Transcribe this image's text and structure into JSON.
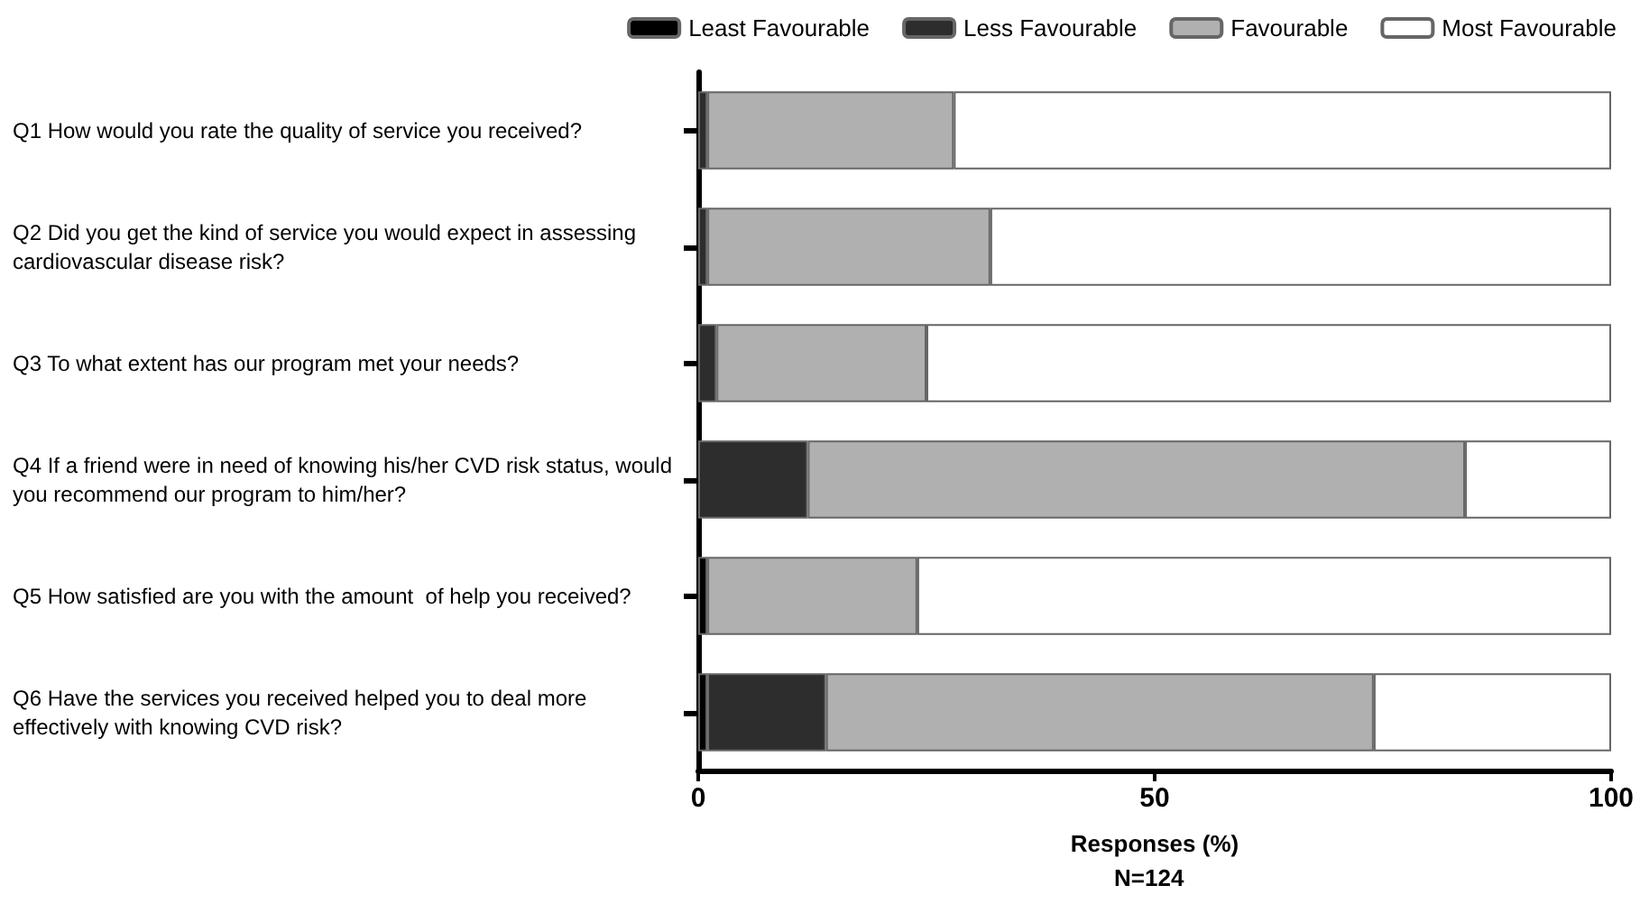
{
  "chart_data": {
    "type": "bar",
    "orientation": "horizontal",
    "stacked": true,
    "categories": [
      "Q1 How would you rate the quality of service you received?",
      "Q2 Did you get the kind of service you would expect in assessing cardiovascular disease risk?",
      "Q3 To what extent has our program met your needs?",
      "Q4 If a friend were in need of knowing his/her CVD risk status, would you recommend our program to him/her?",
      "Q5 How satisfied are you with the amount  of help you received?",
      "Q6 Have the services you received helped you to deal more effectively with knowing CVD risk?"
    ],
    "series": [
      {
        "name": "Least Favourable",
        "color": "#000000",
        "values": [
          0,
          0,
          0,
          0,
          1,
          1
        ]
      },
      {
        "name": "Less Favourable",
        "color": "#2d2d2d",
        "values": [
          1,
          1,
          2,
          12,
          0,
          13
        ]
      },
      {
        "name": "Favourable",
        "color": "#b0b0b0",
        "values": [
          27,
          31,
          23,
          72,
          23,
          60
        ]
      },
      {
        "name": "Most Favourable",
        "color": "#ffffff",
        "values": [
          72,
          68,
          75,
          16,
          76,
          26
        ]
      }
    ],
    "xlim": [
      0,
      100
    ],
    "xticks": [
      0,
      50,
      100
    ],
    "xlabel": "Responses (%)",
    "annotations": [
      "N=124"
    ],
    "legend": "top right",
    "grid": false
  }
}
